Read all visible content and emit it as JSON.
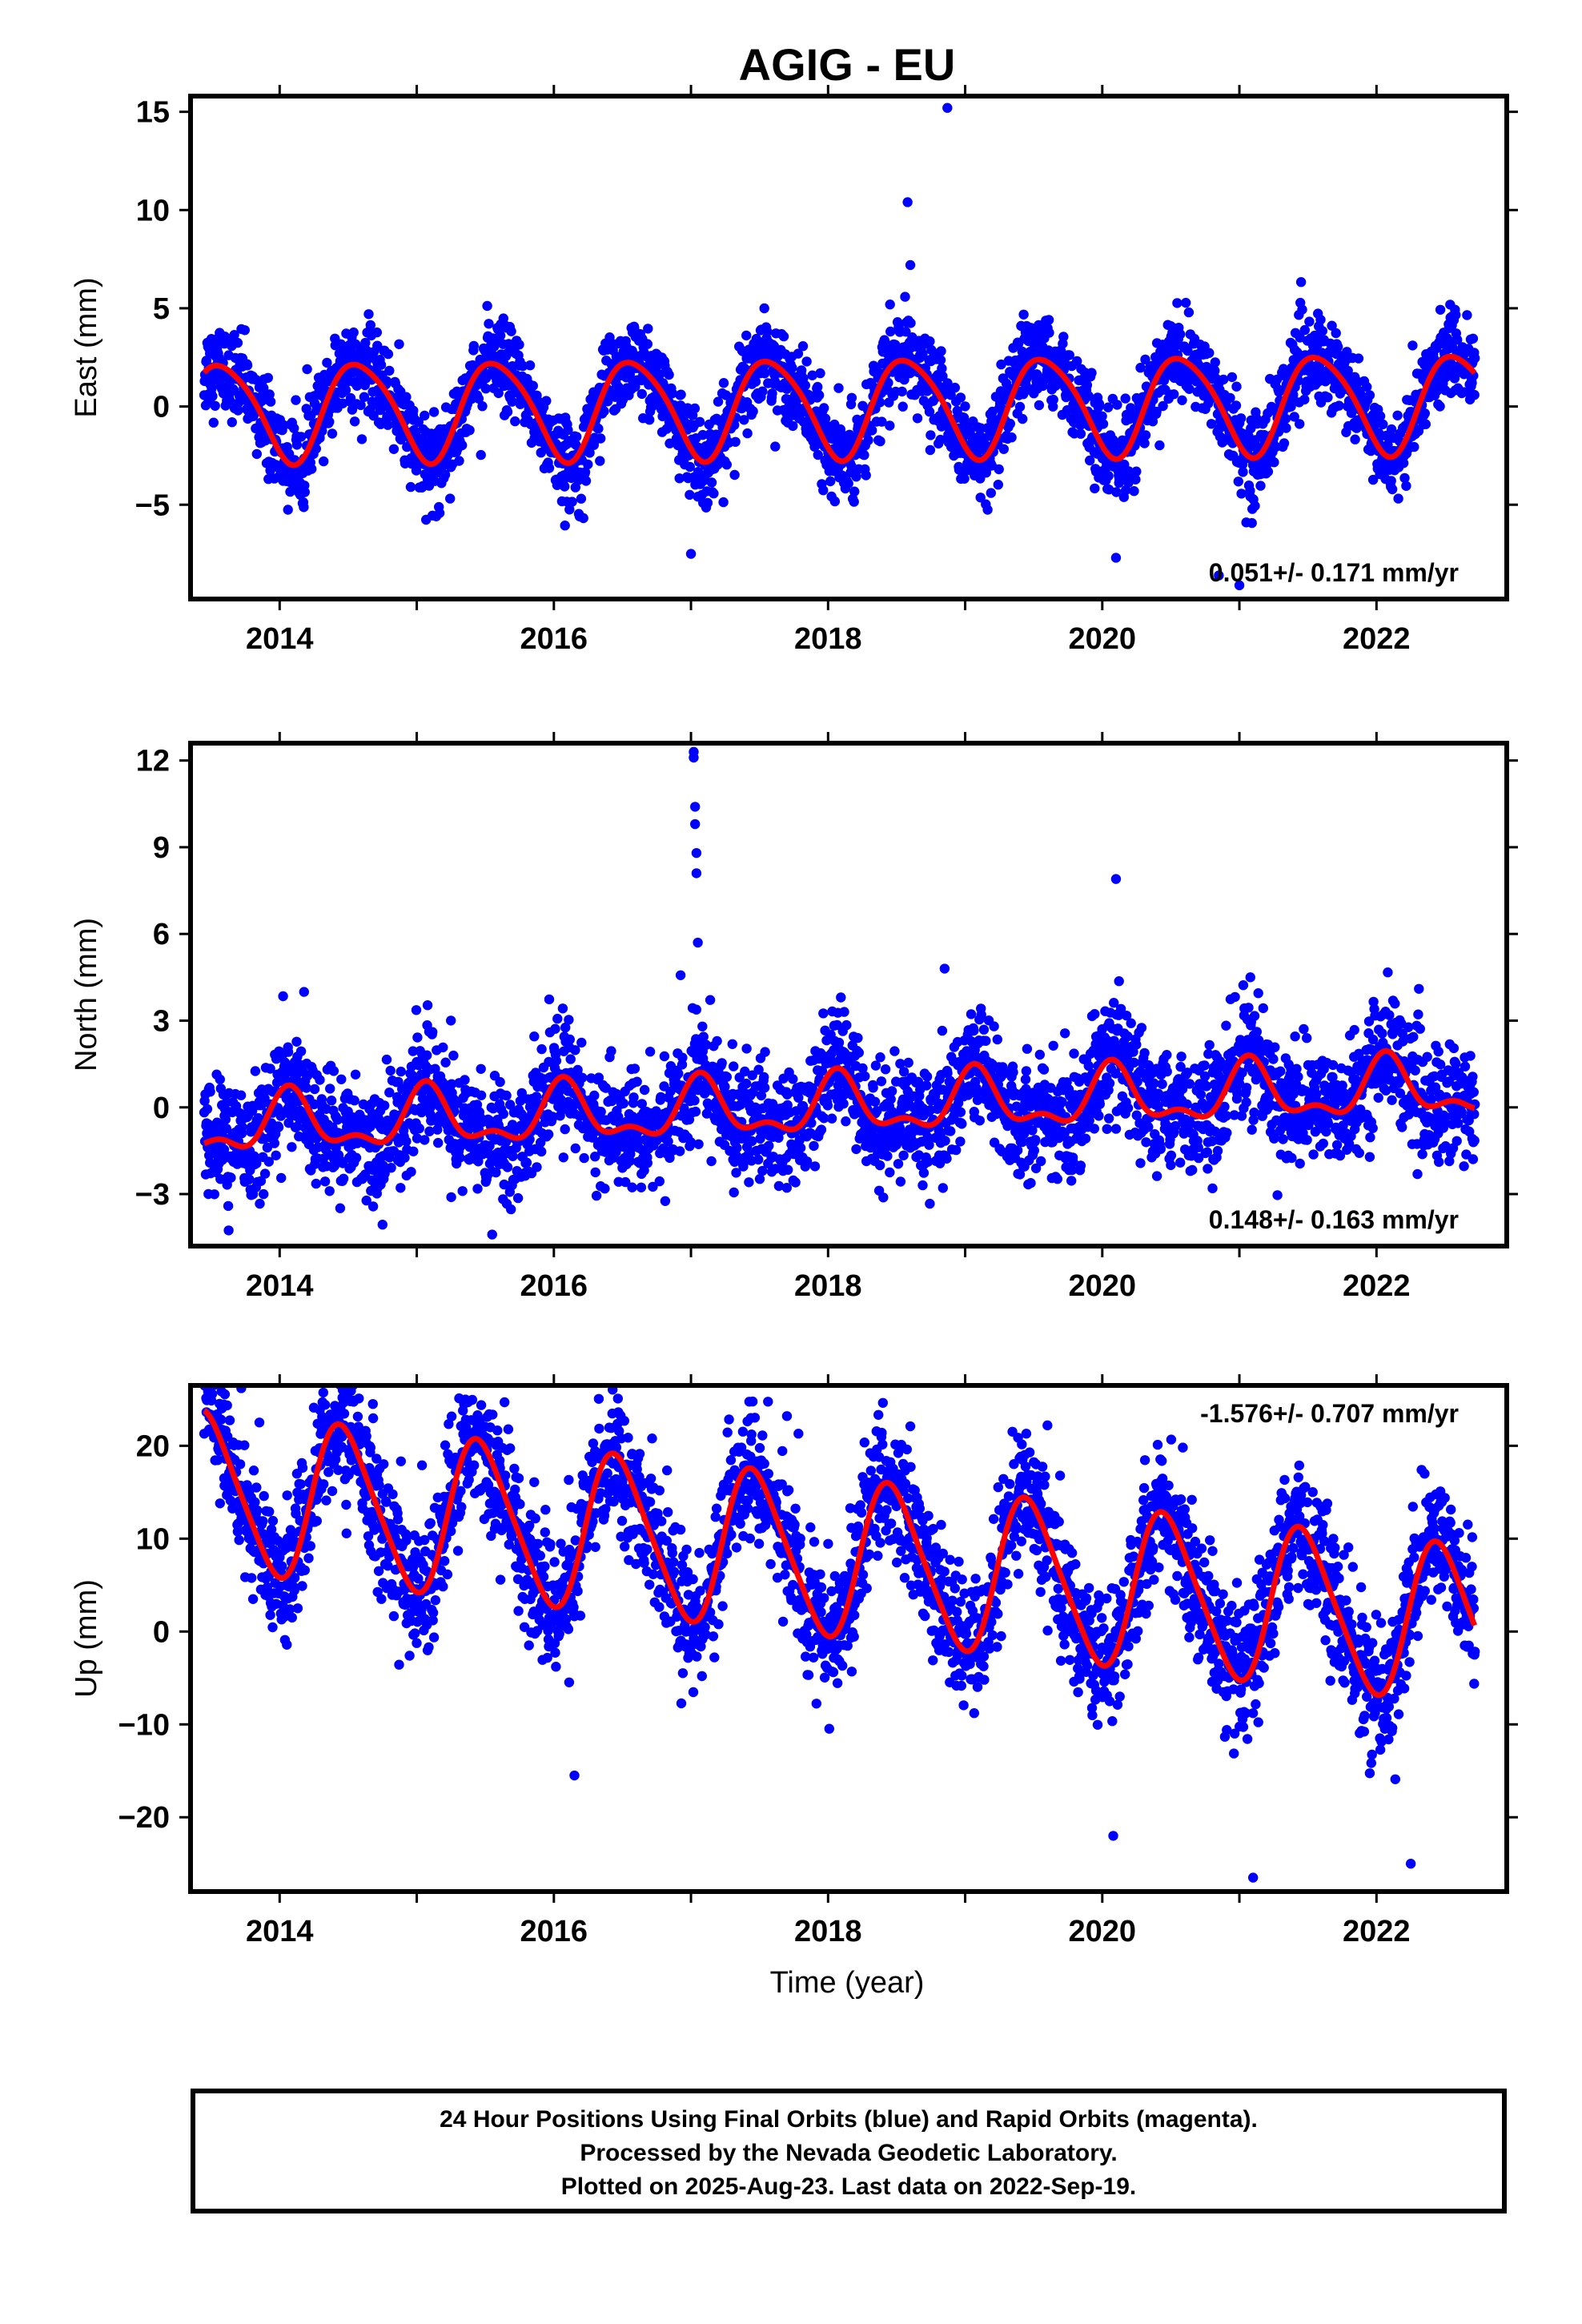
{
  "title": "AGIG - EU",
  "colors": {
    "points": "#0000ff",
    "fit": "#ff0000",
    "frame": "#000000"
  },
  "xlabel": "Time (year)",
  "footer": {
    "line1": "24 Hour Positions Using Final Orbits (blue) and Rapid Orbits (magenta).",
    "line2": "Processed by the Nevada Geodetic Laboratory.",
    "line3": "Plotted on 2025-Aug-23. Last data on 2022-Sep-19."
  },
  "chart_data": [
    {
      "type": "scatter",
      "component": "east",
      "ylabel": "East (mm)",
      "xlim": [
        2013.35,
        2022.95
      ],
      "ylim": [
        -9.8,
        15.8
      ],
      "yticks": [
        -5,
        0,
        5,
        10,
        15
      ],
      "xticks": [
        2014,
        2016,
        2018,
        2020,
        2022
      ],
      "rate_label": "0.051+/- 0.171 mm/yr",
      "rate_position": "bottom-right",
      "start_year": 2013.45,
      "end_year": 2022.72,
      "fit": {
        "rate": 0.051,
        "amplitude": 2.5,
        "phase": 4.2,
        "semiannual": 0.35
      },
      "scatter_sigma": 1.1,
      "outliers": [
        {
          "x": 2018.87,
          "y": 15.2
        },
        {
          "x": 2018.58,
          "y": 10.4
        },
        {
          "x": 2018.6,
          "y": 7.2
        },
        {
          "x": 2017.0,
          "y": -7.5
        },
        {
          "x": 2020.1,
          "y": -7.7
        },
        {
          "x": 2021.05,
          "y": -5.9
        },
        {
          "x": 2020.85,
          "y": -8.6
        },
        {
          "x": 2021.0,
          "y": -9.1
        },
        {
          "x": 2018.18,
          "y": -4.7
        }
      ]
    },
    {
      "type": "scatter",
      "component": "north",
      "ylabel": "North (mm)",
      "xlim": [
        2013.35,
        2022.95
      ],
      "ylim": [
        -4.8,
        12.6
      ],
      "yticks": [
        -3,
        0,
        3,
        6,
        9,
        12
      ],
      "xticks": [
        2014,
        2016,
        2018,
        2020,
        2022
      ],
      "rate_label": "0.148+/- 0.163 mm/yr",
      "rate_position": "bottom-right",
      "start_year": 2013.45,
      "end_year": 2022.72,
      "fit": {
        "rate": 0.148,
        "amplitude": 0.9,
        "phase": 1.1,
        "semiannual": 0.45
      },
      "scatter_sigma": 1.0,
      "outliers": [
        {
          "x": 2017.02,
          "y": 12.3
        },
        {
          "x": 2017.02,
          "y": 12.1
        },
        {
          "x": 2017.03,
          "y": 10.4
        },
        {
          "x": 2017.03,
          "y": 9.8
        },
        {
          "x": 2017.04,
          "y": 8.8
        },
        {
          "x": 2017.04,
          "y": 8.1
        },
        {
          "x": 2017.05,
          "y": 5.7
        },
        {
          "x": 2020.1,
          "y": 7.9
        },
        {
          "x": 2021.08,
          "y": 4.5
        },
        {
          "x": 2015.55,
          "y": -4.4
        },
        {
          "x": 2018.85,
          "y": 4.8
        }
      ]
    },
    {
      "type": "scatter",
      "component": "up",
      "ylabel": "Up (mm)",
      "xlim": [
        2013.35,
        2022.95
      ],
      "ylim": [
        -28.0,
        26.5
      ],
      "yticks": [
        -20,
        -10,
        0,
        10,
        20
      ],
      "xticks": [
        2014,
        2016,
        2018,
        2020,
        2022
      ],
      "rate_label": "-1.576+/- 0.707 mm/yr",
      "rate_position": "top-right",
      "start_year": 2013.45,
      "end_year": 2022.72,
      "fit": {
        "rate": -1.576,
        "amplitude": 8.3,
        "phase": 4.9,
        "semiannual": 1.2,
        "offset": 8.0
      },
      "scatter_sigma": 3.6,
      "outliers": [
        {
          "x": 2013.72,
          "y": 26.2
        },
        {
          "x": 2014.68,
          "y": 24.5
        },
        {
          "x": 2017.7,
          "y": 23.2
        },
        {
          "x": 2018.6,
          "y": 22.1
        },
        {
          "x": 2019.6,
          "y": 22.2
        },
        {
          "x": 2021.1,
          "y": -26.5
        },
        {
          "x": 2022.25,
          "y": -25.0
        },
        {
          "x": 2020.08,
          "y": -22.0
        },
        {
          "x": 2016.15,
          "y": -15.5
        }
      ]
    }
  ]
}
